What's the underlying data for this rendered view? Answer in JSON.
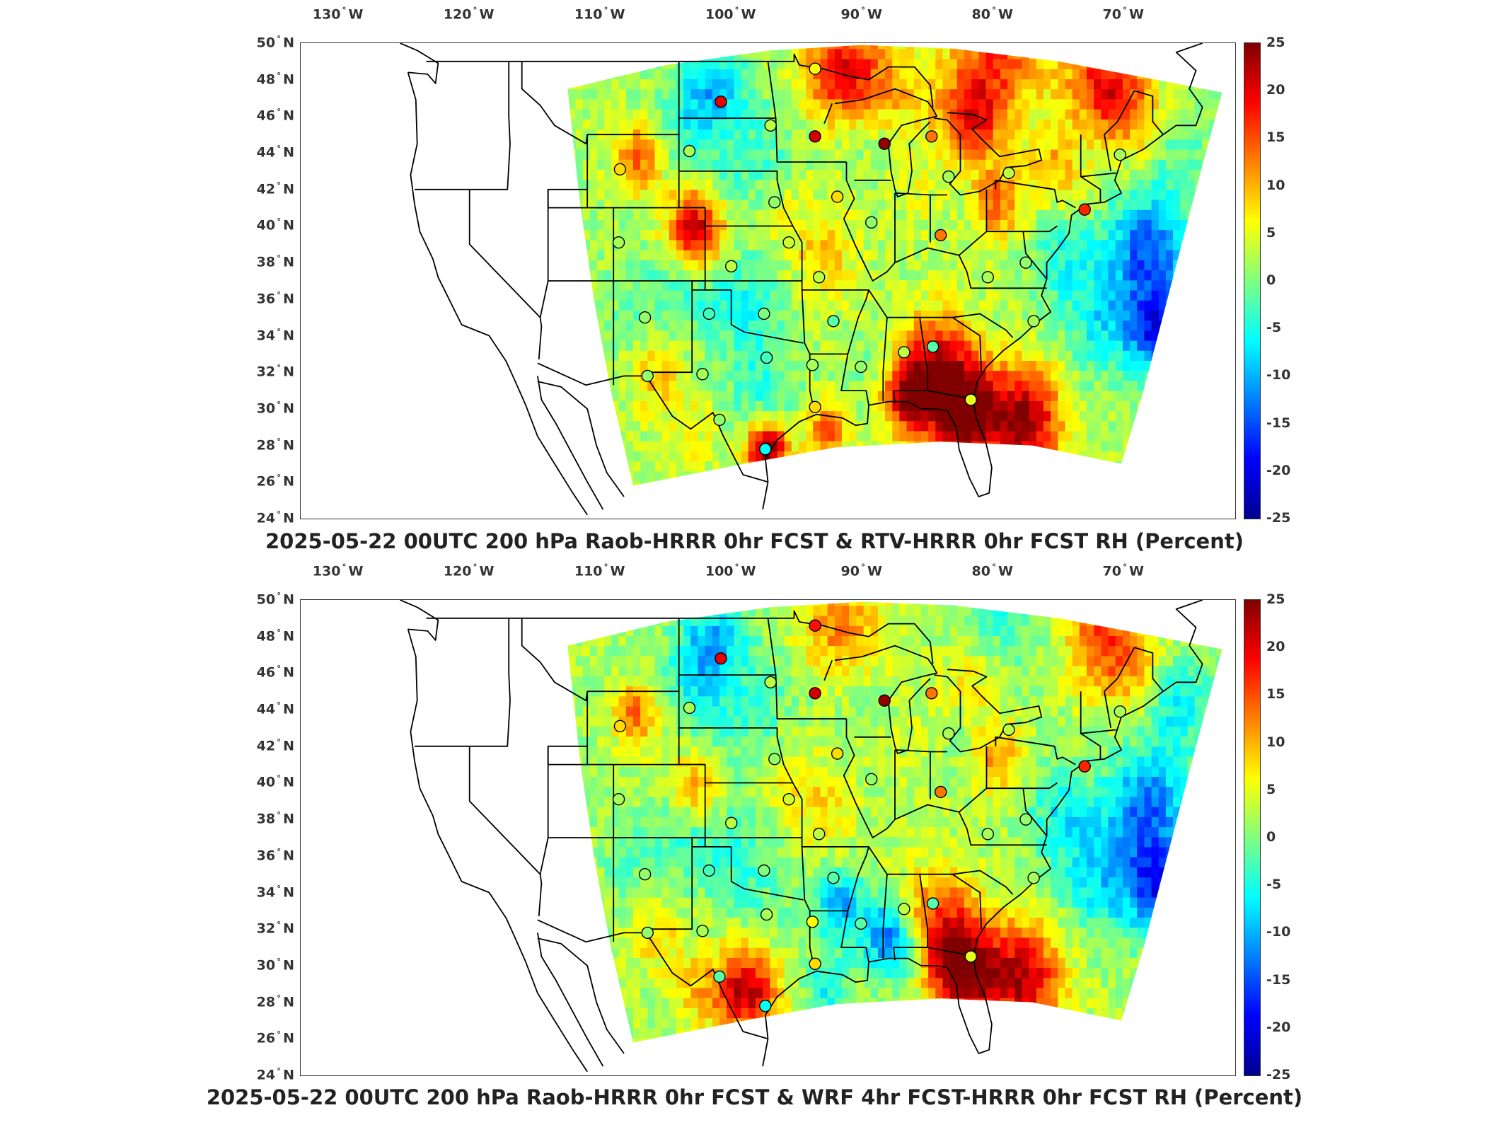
{
  "colors": {
    "scale": [
      "#00008f",
      "#0000ff",
      "#0080ff",
      "#00ffff",
      "#80ff80",
      "#ffff00",
      "#ff8000",
      "#ff0000",
      "#800000"
    ],
    "outline": "#000000",
    "frame": "#333333"
  },
  "axes": {
    "lon_labels": [
      {
        "deg": "130",
        "dir": "W"
      },
      {
        "deg": "120",
        "dir": "W"
      },
      {
        "deg": "110",
        "dir": "W"
      },
      {
        "deg": "100",
        "dir": "W"
      },
      {
        "deg": "90",
        "dir": "W"
      },
      {
        "deg": "80",
        "dir": "W"
      },
      {
        "deg": "70",
        "dir": "W"
      }
    ],
    "lat_labels": [
      {
        "deg": "50",
        "dir": "N"
      },
      {
        "deg": "48",
        "dir": "N"
      },
      {
        "deg": "46",
        "dir": "N"
      },
      {
        "deg": "44",
        "dir": "N"
      },
      {
        "deg": "42",
        "dir": "N"
      },
      {
        "deg": "40",
        "dir": "N"
      },
      {
        "deg": "38",
        "dir": "N"
      },
      {
        "deg": "36",
        "dir": "N"
      },
      {
        "deg": "34",
        "dir": "N"
      },
      {
        "deg": "32",
        "dir": "N"
      },
      {
        "deg": "30",
        "dir": "N"
      },
      {
        "deg": "28",
        "dir": "N"
      },
      {
        "deg": "26",
        "dir": "N"
      },
      {
        "deg": "24",
        "dir": "N"
      }
    ],
    "colorbar_ticks": [
      "25",
      "20",
      "15",
      "10",
      "5",
      "0",
      "-5",
      "-10",
      "-15",
      "-20",
      "-25"
    ],
    "colorbar_range": [
      -25,
      25
    ]
  },
  "panels": [
    {
      "title": "2025-05-22 00UTC 200 hPa Raob-HRRR 0hr FCST & RTV-HRRR 0hr FCST RH (Percent)"
    },
    {
      "title": "2025-05-22 00UTC 200 hPa Raob-HRRR 0hr FCST & WRF 4hr FCST-HRRR 0hr FCST RH (Percent)"
    }
  ],
  "stations": [
    {
      "lon": -100.8,
      "lat": 46.8,
      "v1": 20,
      "v2": 20
    },
    {
      "lon": -97.0,
      "lat": 45.5,
      "v1": 3,
      "v2": 3
    },
    {
      "lon": -93.6,
      "lat": 44.9,
      "v1": 21,
      "v2": 21
    },
    {
      "lon": -88.3,
      "lat": 44.5,
      "v1": 24,
      "v2": 24
    },
    {
      "lon": -84.7,
      "lat": 44.9,
      "v1": 13,
      "v2": 13
    },
    {
      "lon": -93.6,
      "lat": 48.6,
      "v1": 6,
      "v2": 18
    },
    {
      "lon": -103.2,
      "lat": 44.1,
      "v1": 2,
      "v2": 2
    },
    {
      "lon": -108.5,
      "lat": 43.1,
      "v1": 8,
      "v2": 8
    },
    {
      "lon": -96.7,
      "lat": 41.3,
      "v1": 1,
      "v2": 1
    },
    {
      "lon": -91.9,
      "lat": 41.6,
      "v1": 8,
      "v2": 8
    },
    {
      "lon": -83.4,
      "lat": 42.7,
      "v1": 2,
      "v2": 2
    },
    {
      "lon": -78.8,
      "lat": 42.9,
      "v1": 3,
      "v2": 3
    },
    {
      "lon": -70.3,
      "lat": 43.9,
      "v1": 2,
      "v2": 2
    },
    {
      "lon": -73.0,
      "lat": 40.9,
      "v1": 17,
      "v2": 17
    },
    {
      "lon": -89.3,
      "lat": 40.2,
      "v1": 1,
      "v2": 1
    },
    {
      "lon": -84.0,
      "lat": 39.5,
      "v1": 13,
      "v2": 13
    },
    {
      "lon": -108.6,
      "lat": 39.1,
      "v1": 2,
      "v2": 2
    },
    {
      "lon": -100.0,
      "lat": 37.8,
      "v1": 3,
      "v2": 3
    },
    {
      "lon": -95.6,
      "lat": 39.1,
      "v1": 4,
      "v2": 4
    },
    {
      "lon": -77.5,
      "lat": 38.0,
      "v1": 1,
      "v2": 1
    },
    {
      "lon": -80.4,
      "lat": 37.2,
      "v1": 2,
      "v2": 2
    },
    {
      "lon": -93.3,
      "lat": 37.2,
      "v1": 3,
      "v2": 3
    },
    {
      "lon": -106.6,
      "lat": 35.0,
      "v1": 1,
      "v2": 1
    },
    {
      "lon": -101.7,
      "lat": 35.2,
      "v1": -3,
      "v2": -3
    },
    {
      "lon": -97.5,
      "lat": 35.2,
      "v1": 0,
      "v2": 0
    },
    {
      "lon": -92.2,
      "lat": 34.8,
      "v1": -2,
      "v2": -2
    },
    {
      "lon": -76.9,
      "lat": 34.8,
      "v1": 2,
      "v2": 2
    },
    {
      "lon": -97.3,
      "lat": 32.8,
      "v1": -3,
      "v2": 2
    },
    {
      "lon": -93.8,
      "lat": 32.4,
      "v1": 2,
      "v2": 6
    },
    {
      "lon": -90.1,
      "lat": 32.3,
      "v1": 1,
      "v2": -2
    },
    {
      "lon": -86.8,
      "lat": 33.1,
      "v1": 3,
      "v2": 3
    },
    {
      "lon": -84.6,
      "lat": 33.4,
      "v1": -2,
      "v2": -2
    },
    {
      "lon": -106.4,
      "lat": 31.8,
      "v1": 1,
      "v2": 1
    },
    {
      "lon": -102.2,
      "lat": 31.9,
      "v1": 2,
      "v2": 2
    },
    {
      "lon": -100.9,
      "lat": 29.4,
      "v1": 1,
      "v2": -2
    },
    {
      "lon": -93.6,
      "lat": 30.1,
      "v1": 8,
      "v2": 8
    },
    {
      "lon": -97.4,
      "lat": 27.8,
      "v1": -6,
      "v2": -6
    },
    {
      "lon": -81.7,
      "lat": 30.5,
      "v1": 5,
      "v2": 5
    }
  ]
}
